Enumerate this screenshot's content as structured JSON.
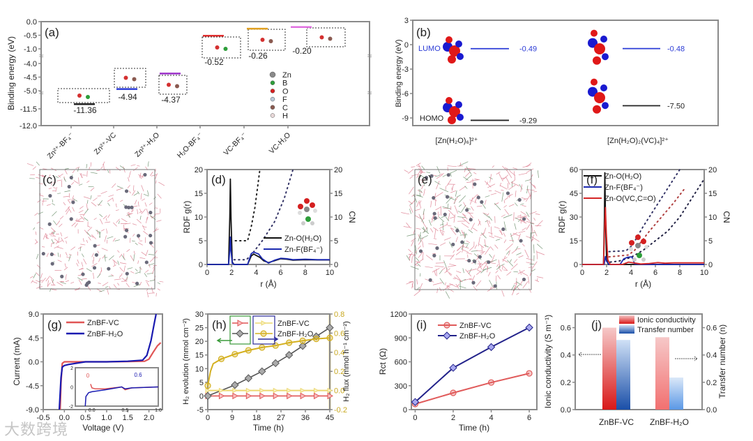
{
  "watermark": "大数跨境",
  "chart_data": [
    {
      "id": "a",
      "type": "bar",
      "panel_label": "(a)",
      "ylabel": "Binding energy (eV)",
      "categories": [
        "Zn²⁺-BF₄⁻",
        "Zn²⁺-VC",
        "Zn²⁺-H₂O",
        "H₂O-BF₄⁻",
        "VC-BF₄⁻",
        "VC-H₂O"
      ],
      "values": [
        -11.36,
        -4.94,
        -4.37,
        -0.52,
        -0.26,
        -0.2
      ],
      "value_labels": [
        "-11.36",
        "-4.94",
        "-4.37",
        "-0.52",
        "-0.26",
        "-0.20"
      ],
      "colors": [
        "#222222",
        "#2b3bd6",
        "#9b30c8",
        "#e03030",
        "#e0a020",
        "#e070e0"
      ],
      "yticks": [
        "0.0",
        "-0.5",
        "-1.0",
        "-4.0",
        "-4.5",
        "-5.0",
        "-11.5",
        "-12.0"
      ],
      "ytick_values": [
        0.0,
        -0.5,
        -1.0,
        -4.0,
        -4.5,
        -5.0,
        -11.5,
        -12.0
      ],
      "axis_breaks": [
        [
          -1.0,
          -4.0
        ],
        [
          -5.0,
          -11.0
        ]
      ],
      "legend": [
        {
          "label": "Zn",
          "color": "#8a8a8a"
        },
        {
          "label": "B",
          "color": "#2e9e3a"
        },
        {
          "label": "O",
          "color": "#d62020"
        },
        {
          "label": "F",
          "color": "#b8c8d8"
        },
        {
          "label": "C",
          "color": "#8a5a50"
        },
        {
          "label": "H",
          "color": "#e8d8d8"
        }
      ]
    },
    {
      "id": "b",
      "type": "bar",
      "panel_label": "(b)",
      "ylabel": "Binding energy (eV)",
      "ylim": [
        -9.94,
        3
      ],
      "yticks": [
        "3",
        "0",
        "-3",
        "-6",
        "-9"
      ],
      "ytick_values": [
        3,
        0,
        -3,
        -6,
        -9
      ],
      "lumo_label": "LUMO",
      "homo_label": "HOMO",
      "categories": [
        "[Zn(H₂O)₆]²⁺",
        "[Zn(H₂O)₂(VC)₄]²⁺"
      ],
      "series": [
        {
          "name": "LUMO",
          "values": [
            -0.49,
            -0.48
          ],
          "labels": [
            "-0.49",
            "-0.48"
          ],
          "color": "#2b3bd6"
        },
        {
          "name": "HOMO",
          "values": [
            -9.29,
            -7.5
          ],
          "labels": [
            "-9.29",
            "-7.50"
          ],
          "color": "#222222"
        }
      ]
    },
    {
      "id": "c",
      "type": "image",
      "panel_label": "(c)"
    },
    {
      "id": "d",
      "type": "line",
      "panel_label": "(d)",
      "xlabel": "r (Å)",
      "ylabel": "RDF g(r)",
      "y2label": "CN",
      "xlim": [
        0,
        10
      ],
      "ylim": [
        0,
        20
      ],
      "y2lim": [
        0,
        20
      ],
      "xticks": [
        "0",
        "2",
        "4",
        "6",
        "8",
        "10"
      ],
      "yticks": [
        "0",
        "5",
        "10",
        "15",
        "20"
      ],
      "y2ticks": [
        "0",
        "5",
        "10",
        "15",
        "20"
      ],
      "series": [
        {
          "name": "Zn-O(H₂O)",
          "color": "#111111",
          "x": [
            0,
            1.75,
            1.85,
            1.9,
            1.95,
            2.05,
            2.2,
            3.3,
            3.6,
            3.8,
            4.0,
            4.3,
            4.6,
            5.0,
            5.5,
            6.0,
            6.5,
            7,
            8,
            9,
            10
          ],
          "y": [
            0,
            0,
            10,
            18,
            10,
            0.5,
            0,
            0,
            1.8,
            2.2,
            1.9,
            1.5,
            0.8,
            0.4,
            0.8,
            1.2,
            1.1,
            0.9,
            1.0,
            0.95,
            0.95
          ]
        },
        {
          "name": "Zn-F(BF₄⁻)",
          "color": "#1c2ab0",
          "x": [
            0,
            1.75,
            1.85,
            1.9,
            1.95,
            2.05,
            2.2,
            3.3,
            3.6,
            3.8,
            4.0,
            4.2,
            4.5,
            5.0,
            5.5,
            6.0,
            6.5,
            7,
            8,
            9,
            10
          ],
          "y": [
            0,
            0,
            3,
            5.8,
            3,
            0.3,
            0,
            0,
            2.3,
            2.6,
            2.4,
            2.2,
            1.2,
            0.3,
            0.9,
            1.3,
            1.2,
            1.0,
            1.1,
            1.0,
            1.0
          ]
        }
      ],
      "cn_series": [
        {
          "name": "CN Zn-O(H₂O)",
          "color": "#222222",
          "x": [
            2.3,
            3.3,
            3.6,
            3.9,
            4.1,
            4.3
          ],
          "y": [
            5,
            5,
            8,
            12,
            16,
            20
          ]
        },
        {
          "name": "CN Zn-F(BF₄⁻)",
          "color": "#333366",
          "x": [
            2.2,
            3.2,
            3.6,
            4.5,
            5.5,
            6.3,
            7.0
          ],
          "y": [
            1,
            1,
            2,
            5,
            9,
            14,
            20
          ]
        }
      ]
    },
    {
      "id": "e",
      "type": "image",
      "panel_label": "(e)"
    },
    {
      "id": "f",
      "type": "line",
      "panel_label": "(f)",
      "xlabel": "r (Å)",
      "ylabel": "RDF g(r)",
      "y2label": "CN",
      "xlim": [
        0,
        10
      ],
      "ylim": [
        0,
        60
      ],
      "y2lim": [
        0,
        20
      ],
      "xticks": [
        "0",
        "2",
        "4",
        "6",
        "8",
        "10"
      ],
      "yticks": [
        "0",
        "15",
        "30",
        "45",
        "60"
      ],
      "y2ticks": [
        "0",
        "5",
        "10",
        "15",
        "20"
      ],
      "series": [
        {
          "name": "Zn-O(H₂O)",
          "color": "#111111",
          "x": [
            0,
            1.75,
            1.82,
            1.86,
            1.92,
            2.0,
            2.15,
            10
          ],
          "y": [
            0,
            0,
            30,
            58,
            25,
            3,
            0,
            0
          ]
        },
        {
          "name": "Zn-F(BF₄⁻)",
          "color": "#1c2ab0",
          "x": [
            0,
            1.8,
            1.9,
            2.0,
            2.2,
            3.1,
            3.4,
            3.7,
            4.0,
            4.1,
            4.3,
            5,
            10
          ],
          "y": [
            0,
            0,
            5,
            2,
            0,
            0,
            3.5,
            4.5,
            4.8,
            4.5,
            0.3,
            0,
            0
          ]
        },
        {
          "name": "Zn-O(VC,C=O)",
          "color": "#d42525",
          "x": [
            0,
            1.75,
            1.82,
            1.9,
            1.98,
            2.1,
            2.3,
            3.3,
            3.8,
            4.2,
            4.8,
            5.5,
            6.2,
            6.8,
            7.5,
            8.5,
            10
          ],
          "y": [
            0,
            0,
            20,
            36,
            20,
            3,
            0,
            0,
            1.5,
            1.0,
            0.3,
            0.6,
            1.2,
            0.8,
            1.0,
            1.0,
            1.0
          ]
        }
      ],
      "cn_series": [
        {
          "name": "CN Zn-O(H₂O)",
          "color": "#333366",
          "x": [
            2.2,
            3.6,
            4.1,
            5,
            6,
            7,
            8
          ],
          "y": [
            2.7,
            2.9,
            4,
            8,
            12,
            16,
            20
          ]
        },
        {
          "name": "CN Zn-O(VC)",
          "color": "#b04040",
          "x": [
            2.2,
            3.8,
            4.3,
            5.5,
            6.5,
            7.5,
            8.4
          ],
          "y": [
            1.6,
            2,
            3,
            7,
            10,
            13,
            16
          ]
        },
        {
          "name": "CN Zn-F(BF₄⁻)",
          "color": "#222244",
          "x": [
            2.3,
            3,
            4,
            5,
            6,
            7,
            8,
            9,
            10
          ],
          "y": [
            0.5,
            0.7,
            1.5,
            3,
            5,
            7,
            10,
            14,
            18
          ]
        }
      ]
    },
    {
      "id": "g",
      "type": "line",
      "panel_label": "(g)",
      "xlabel": "Voltage (V)",
      "ylabel": "Current (mA)",
      "xlim": [
        -0.5,
        2.32
      ],
      "ylim": [
        -9,
        9
      ],
      "xticks": [
        "-0.5",
        "0.0",
        "0.5",
        "1.0",
        "1.5",
        "2.0"
      ],
      "yticks": [
        "-9.0",
        "-4.5",
        "0.0",
        "4.5",
        "9.0"
      ],
      "series": [
        {
          "name": "ZnBF-VC",
          "color": "#e05555",
          "x": [
            -0.1,
            -0.08,
            -0.05,
            0,
            0.5,
            1.0,
            1.5,
            1.9,
            2.0,
            2.1,
            2.2,
            2.28
          ],
          "y": [
            -9,
            -4,
            -0.3,
            0,
            0,
            0,
            0.05,
            0.1,
            0.5,
            1.8,
            3,
            3.6
          ]
        },
        {
          "name": "ZnBF-H₂O",
          "color": "#1a1ab0",
          "x": [
            -0.12,
            -0.08,
            -0.05,
            0,
            0.1,
            0.5,
            1,
            1.5,
            1.85,
            1.95,
            2.05,
            2.12,
            2.17
          ],
          "y": [
            -9,
            -3,
            -1,
            -0.7,
            -0.5,
            0,
            0,
            0.1,
            0.3,
            1.2,
            4,
            7,
            9
          ]
        }
      ],
      "inset": {
        "xlim": [
          -0.25,
          1.0
        ],
        "ylim": [
          -2,
          2
        ],
        "xticks": [
          "0.0",
          "0.5",
          "1.0"
        ],
        "yticks": [
          "-2",
          "0",
          "2"
        ],
        "annotations": [
          {
            "text": "0",
            "color": "#e05555"
          },
          {
            "text": "0.6",
            "color": "#1a1ab0"
          }
        ],
        "series": [
          {
            "name": "ZnBF-VC",
            "color": "#e05555",
            "x": [
              -0.02,
              0,
              0.05,
              0.2,
              0.45,
              0.5,
              0.6,
              1.0
            ],
            "y": [
              0.3,
              -0.1,
              -0.2,
              -0.2,
              0,
              -0.3,
              -0.1,
              0
            ]
          },
          {
            "name": "ZnBF-H₂O",
            "color": "#1a1ab0",
            "x": [
              -0.1,
              -0.09,
              -0.05,
              0,
              0.2,
              0.45,
              0.5,
              0.6,
              1.0
            ],
            "y": [
              -2,
              -1,
              -0.6,
              -0.5,
              -0.3,
              0,
              -0.2,
              -0.1,
              0
            ]
          }
        ]
      }
    },
    {
      "id": "h",
      "type": "line",
      "panel_label": "(h)",
      "xlabel": "Time (h)",
      "ylabel": "H₂ evolution (mmol cm⁻²)",
      "y2label": "H₂ flux (mmol h⁻¹ cm⁻²)",
      "xlim": [
        0,
        45
      ],
      "ylim": [
        -5,
        30
      ],
      "y2lim": [
        -0.2,
        0.8
      ],
      "xticks": [
        "0",
        "9",
        "18",
        "27",
        "36",
        "45"
      ],
      "yticks": [
        "-5",
        "0",
        "5",
        "10",
        "15",
        "20",
        "25",
        "30"
      ],
      "y2ticks": [
        "-0.2",
        "0.0",
        "0.2",
        "0.4",
        "0.6",
        "0.8"
      ],
      "legend": [
        "ZnBF-VC",
        "ZnBF-H₂O"
      ],
      "series": [
        {
          "name": "ZnBF-VC evolution",
          "axis": "left",
          "marker": "triangle",
          "color": "#e05555",
          "x": [
            0,
            5,
            10,
            15,
            20,
            25,
            30,
            35,
            40,
            45
          ],
          "y": [
            0,
            0,
            0,
            0,
            0,
            0,
            0,
            0,
            0,
            0
          ]
        },
        {
          "name": "ZnBF-H₂O evolution",
          "axis": "left",
          "marker": "diamond",
          "color": "#555555",
          "x": [
            0,
            10,
            15,
            20,
            25,
            30,
            35,
            40,
            45
          ],
          "y": [
            0,
            4,
            6.5,
            9,
            12,
            15,
            18.3,
            21.8,
            25
          ]
        },
        {
          "name": "ZnBF-VC flux",
          "axis": "right",
          "marker": "tri-small",
          "color": "#ecd870",
          "x": [
            0,
            5,
            10,
            15,
            20,
            25,
            30,
            35,
            40,
            45
          ],
          "y": [
            0,
            0,
            0,
            0,
            0,
            0,
            0,
            0,
            0,
            0
          ]
        },
        {
          "name": "ZnBF-H₂O flux",
          "axis": "right",
          "marker": "circle",
          "color": "#d4b020",
          "x": [
            0,
            1,
            2,
            5,
            10,
            15,
            20,
            25,
            30,
            35,
            40,
            45
          ],
          "y": [
            0.05,
            0.2,
            0.28,
            0.33,
            0.38,
            0.42,
            0.45,
            0.47,
            0.5,
            0.52,
            0.54,
            0.55
          ]
        }
      ]
    },
    {
      "id": "i",
      "type": "line",
      "panel_label": "(i)",
      "xlabel": "Time (h)",
      "ylabel": "Rct (Ω)",
      "xlim": [
        -0.2,
        6.4
      ],
      "ylim": [
        0,
        1200
      ],
      "xticks": [
        "0",
        "2",
        "4",
        "6"
      ],
      "yticks": [
        "0",
        "300",
        "600",
        "900",
        "1200"
      ],
      "series": [
        {
          "name": "ZnBF-VC",
          "marker": "circle",
          "color": "#e05a5a",
          "x": [
            0,
            2,
            4,
            6
          ],
          "y": [
            70,
            210,
            340,
            455
          ]
        },
        {
          "name": "ZnBF-H₂O",
          "marker": "diamond",
          "color": "#22228a",
          "x": [
            0,
            2,
            4,
            6
          ],
          "y": [
            95,
            525,
            785,
            1030
          ]
        }
      ]
    },
    {
      "id": "j",
      "type": "bar",
      "panel_label": "(j)",
      "ylabel": "Ionic conductivity (S m⁻¹)",
      "y2label": "Transfer number (n)",
      "ylim": [
        0,
        0.7
      ],
      "y2lim": [
        0,
        0.7
      ],
      "yticks": [
        "0.0",
        "0.2",
        "0.4",
        "0.6"
      ],
      "y2ticks": [
        "0.0",
        "0.2",
        "0.4",
        "0.6"
      ],
      "categories": [
        "ZnBF-VC",
        "ZnBF-H₂O"
      ],
      "series": [
        {
          "name": "Ionic conductivity",
          "axis": "left",
          "values": [
            0.6,
            0.53
          ],
          "color": "#e03030"
        },
        {
          "name": "Transfer number",
          "axis": "right",
          "values": [
            0.51,
            0.235
          ],
          "color": "#1e5fc0"
        }
      ]
    }
  ]
}
